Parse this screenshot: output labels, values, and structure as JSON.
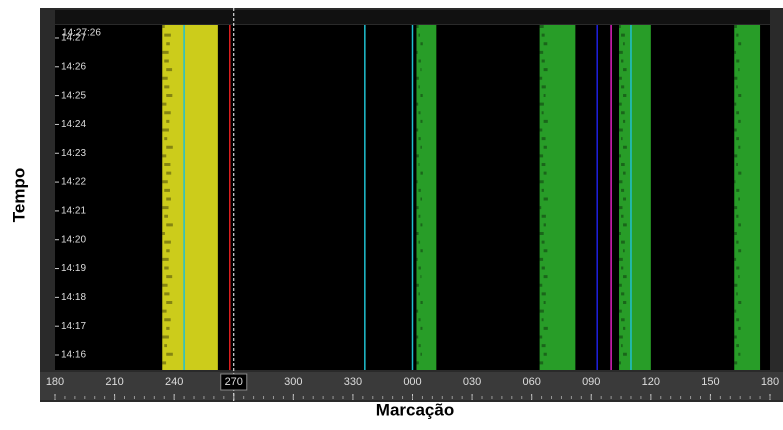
{
  "chart_data": {
    "type": "waterfall",
    "xlabel": "Marcação",
    "ylabel": "Tempo",
    "time_stamp": "14:27:26",
    "xlim": [
      180,
      540
    ],
    "xticks": [
      180,
      210,
      240,
      270,
      300,
      330,
      {
        "value": 360,
        "label": "000"
      },
      {
        "value": 390,
        "label": "030"
      },
      {
        "value": 420,
        "label": "060"
      },
      {
        "value": 450,
        "label": "090"
      },
      {
        "value": 480,
        "label": "120"
      },
      {
        "value": 510,
        "label": "150"
      },
      {
        "value": 540,
        "label": "180"
      }
    ],
    "cursor": 270,
    "ylim": [
      855.48,
      867.45
    ],
    "yticks": [
      {
        "value": 856,
        "label": "14:16"
      },
      {
        "value": 857,
        "label": "14:17"
      },
      {
        "value": 858,
        "label": "14:18"
      },
      {
        "value": 859,
        "label": "14:19"
      },
      {
        "value": 860,
        "label": "14:20"
      },
      {
        "value": 861,
        "label": "14:21"
      },
      {
        "value": 862,
        "label": "14:22"
      },
      {
        "value": 863,
        "label": "14:23"
      },
      {
        "value": 864,
        "label": "14:24"
      },
      {
        "value": 865,
        "label": "14:25"
      },
      {
        "value": 866,
        "label": "14:26"
      },
      {
        "value": 867,
        "label": "14:27"
      }
    ],
    "bands": [
      {
        "from": 234,
        "to": 262,
        "color": "#f0f020"
      },
      {
        "from": 362,
        "to": 372,
        "color": "#2fb82f"
      },
      {
        "from": 424,
        "to": 442,
        "color": "#2fb82f"
      },
      {
        "from": 464,
        "to": 480,
        "color": "#2fb82f"
      },
      {
        "from": 522,
        "to": 535,
        "color": "#2fb82f"
      }
    ],
    "lines": [
      {
        "bearing": 245,
        "color": "#20c0d0"
      },
      {
        "bearing": 268,
        "color": "#e02020"
      },
      {
        "bearing": 336,
        "color": "#20c0d0"
      },
      {
        "bearing": 360,
        "color": "#20c0d0"
      },
      {
        "bearing": 453,
        "color": "#2020e0"
      },
      {
        "bearing": 460,
        "color": "#e020c0"
      },
      {
        "bearing": 470,
        "color": "#20c0d0"
      }
    ]
  }
}
